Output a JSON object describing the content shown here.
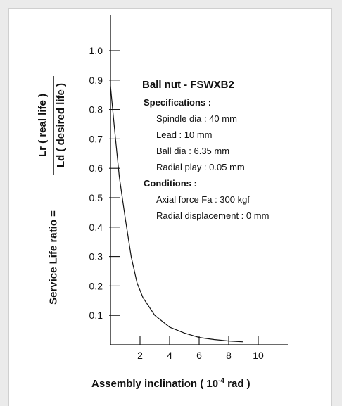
{
  "chart_data": {
    "type": "line",
    "title": "",
    "xlabel": "Assembly inclination ( 10",
    "xlabel_exponent": "-4",
    "xlabel_unit": " rad )",
    "ylabel_prefix": "Service Life ratio =",
    "ylabel_numerator": "Lr ( real life )",
    "ylabel_denominator": "Ld ( desired life )",
    "x_ticks": [
      "2",
      "4",
      "6",
      "8",
      "10"
    ],
    "y_ticks": [
      "0.1",
      "0.2",
      "0.3",
      "0.4",
      "0.5",
      "0.6",
      "0.7",
      "0.8",
      "0.9",
      "1.0"
    ],
    "xlim": [
      0,
      12
    ],
    "ylim": [
      0,
      1.12
    ],
    "grid": false,
    "series": [
      {
        "x": [
          0,
          0.3,
          0.6,
          1.0,
          1.4,
          1.8,
          2.2,
          3.0,
          4.0,
          5.0,
          6.0,
          7.0,
          8.0,
          9.0
        ],
        "y": [
          0.88,
          0.72,
          0.57,
          0.43,
          0.3,
          0.21,
          0.16,
          0.1,
          0.06,
          0.04,
          0.025,
          0.018,
          0.013,
          0.01
        ]
      }
    ],
    "annotation": {
      "title": "Ball nut - FSWXB2",
      "spec_header": "Specifications :",
      "specs": [
        "Spindle dia : 40 mm",
        "Lead : 10 mm",
        "Ball dia : 6.35 mm",
        "Radial play : 0.05 mm"
      ],
      "cond_header": "Conditions :",
      "conditions": [
        "Axial force Fa : 300 kgf",
        "Radial displacement : 0 mm"
      ]
    }
  }
}
